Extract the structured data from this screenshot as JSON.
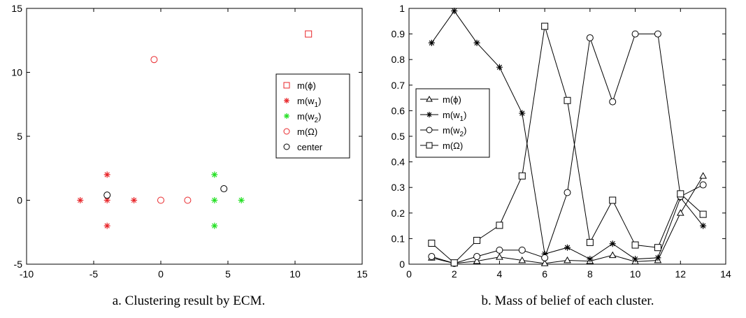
{
  "chart_data": [
    {
      "type": "scatter",
      "caption": "a. Clustering result by ECM.",
      "title": "",
      "xlabel": "",
      "ylabel": "",
      "xlim": [
        -10,
        15
      ],
      "ylim": [
        -5,
        15
      ],
      "xticks": [
        -10,
        -5,
        0,
        5,
        10,
        15
      ],
      "yticks": [
        -5,
        0,
        5,
        10,
        15
      ],
      "grid": false,
      "legend_position": "right",
      "series": [
        {
          "name": "m(ϕ)",
          "marker": "square",
          "color": "#e8262a",
          "points": [
            [
              11,
              13
            ]
          ]
        },
        {
          "name": "m(w1)",
          "marker": "asterisk",
          "color": "#e8262a",
          "points": [
            [
              -6,
              0
            ],
            [
              -4,
              2
            ],
            [
              -4,
              0
            ],
            [
              -4,
              -2
            ],
            [
              -2,
              0
            ]
          ]
        },
        {
          "name": "m(w2)",
          "marker": "asterisk",
          "color": "#22e022",
          "points": [
            [
              4,
              2
            ],
            [
              4,
              0
            ],
            [
              4,
              -2
            ],
            [
              6,
              0
            ]
          ]
        },
        {
          "name": "m(Ω)",
          "marker": "circle",
          "color": "#e8262a",
          "points": [
            [
              -0.5,
              11
            ],
            [
              0,
              0
            ],
            [
              2,
              0
            ]
          ]
        },
        {
          "name": "center",
          "marker": "circle",
          "color": "#000000",
          "points": [
            [
              -4,
              0.4
            ],
            [
              4.7,
              0.9
            ]
          ]
        }
      ]
    },
    {
      "type": "line",
      "caption": "b. Mass of belief of each cluster.",
      "title": "",
      "xlabel": "",
      "ylabel": "",
      "xlim": [
        0,
        14
      ],
      "ylim": [
        0,
        1
      ],
      "xticks": [
        0,
        2,
        4,
        6,
        8,
        10,
        12,
        14
      ],
      "yticks": [
        0,
        0.1,
        0.2,
        0.3,
        0.4,
        0.5,
        0.6,
        0.7,
        0.8,
        0.9,
        1
      ],
      "grid": false,
      "legend_position": "left",
      "x": [
        1,
        2,
        3,
        4,
        5,
        6,
        7,
        8,
        9,
        10,
        11,
        12,
        13
      ],
      "series": [
        {
          "name": "m(ϕ)",
          "marker": "triangle",
          "values": [
            0.025,
            0.003,
            0.012,
            0.028,
            0.015,
            0.003,
            0.015,
            0.012,
            0.035,
            0.01,
            0.015,
            0.2,
            0.345
          ]
        },
        {
          "name": "m(w1)",
          "marker": "asterisk",
          "values": [
            0.865,
            0.99,
            0.865,
            0.77,
            0.59,
            0.04,
            0.065,
            0.02,
            0.08,
            0.02,
            0.025,
            0.26,
            0.15
          ]
        },
        {
          "name": "m(w2)",
          "marker": "circle",
          "values": [
            0.03,
            0.003,
            0.03,
            0.055,
            0.055,
            0.025,
            0.28,
            0.885,
            0.635,
            0.9,
            0.9,
            0.265,
            0.31
          ]
        },
        {
          "name": "m(Ω)",
          "marker": "square",
          "values": [
            0.082,
            0.005,
            0.093,
            0.152,
            0.345,
            0.93,
            0.64,
            0.085,
            0.25,
            0.075,
            0.065,
            0.275,
            0.195
          ]
        }
      ]
    }
  ]
}
